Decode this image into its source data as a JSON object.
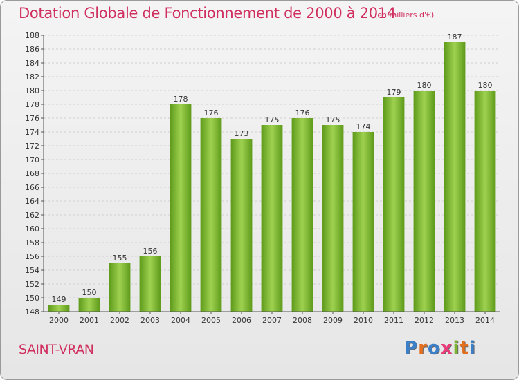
{
  "header": {
    "title": "Dotation Globale de Fonctionnement de 2000 à 2014",
    "unit": "(en milliers d'€)"
  },
  "footer": {
    "commune": "SAINT-VRAN",
    "logo_letters": [
      "P",
      "r",
      "o",
      "x",
      "i",
      "t",
      "i"
    ],
    "logo_colors": [
      "#3a7fc8",
      "#e46f1f",
      "#3a7fc8",
      "#e83c7a",
      "#7ab52f",
      "#e46f1f",
      "#3a7fc8"
    ]
  },
  "colors": {
    "bar_light": "#9fd150",
    "bar_dark": "#5e9a1a",
    "title": "#d0305f",
    "axis_text": "#333333",
    "grid": "#cfcfcf"
  },
  "chart_data": {
    "type": "bar",
    "title": "Dotation Globale de Fonctionnement de 2000 à 2014",
    "subtitle": "(en milliers d'€)",
    "categories": [
      "2000",
      "2001",
      "2002",
      "2003",
      "2004",
      "2005",
      "2006",
      "2007",
      "2008",
      "2009",
      "2010",
      "2011",
      "2012",
      "2013",
      "2014"
    ],
    "values": [
      149,
      150,
      155,
      156,
      178,
      176,
      173,
      175,
      176,
      175,
      174,
      179,
      180,
      187,
      180
    ],
    "ylim": [
      148,
      188
    ],
    "yticks": [
      148,
      150,
      152,
      154,
      156,
      158,
      160,
      162,
      164,
      166,
      168,
      170,
      172,
      174,
      176,
      178,
      180,
      182,
      184,
      186,
      188
    ],
    "grid": true,
    "xlabel": "",
    "ylabel": ""
  }
}
